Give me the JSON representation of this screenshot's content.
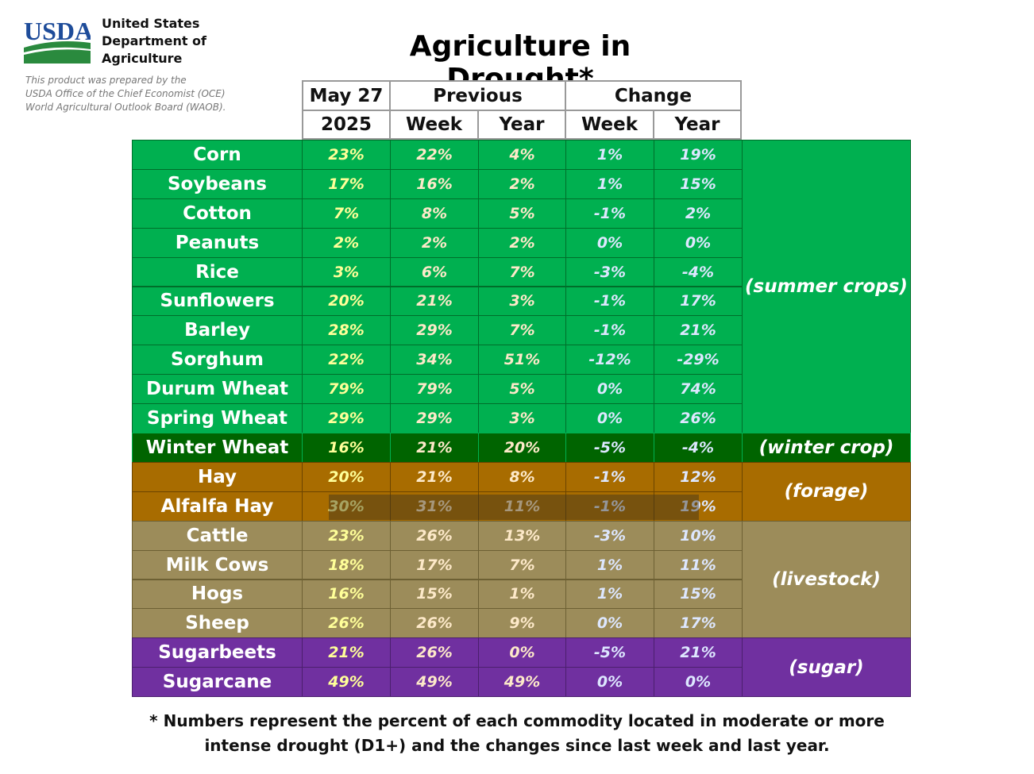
{
  "header": {
    "agency_logo_text": "USDA",
    "agency_lines": [
      "United States",
      "Department of",
      "Agriculture"
    ],
    "prepared_note": [
      "This product was prepared by the",
      "USDA Office of the Chief Economist (OCE)",
      "World Agricultural Outlook Board (WAOB)."
    ],
    "title": "Agriculture in Drought*"
  },
  "table": {
    "header_top": [
      "May 27",
      "Previous",
      "Change"
    ],
    "header_sub": [
      "2025",
      "Week",
      "Year",
      "Week",
      "Year"
    ],
    "rows": [
      {
        "name": "Corn",
        "values": [
          "23%",
          "22%",
          "4%",
          "1%",
          "19%"
        ]
      },
      {
        "name": "Soybeans",
        "values": [
          "17%",
          "16%",
          "2%",
          "1%",
          "15%"
        ]
      },
      {
        "name": "Cotton",
        "values": [
          "7%",
          "8%",
          "5%",
          "-1%",
          "2%"
        ]
      },
      {
        "name": "Peanuts",
        "values": [
          "2%",
          "2%",
          "2%",
          "0%",
          "0%"
        ]
      },
      {
        "name": "Rice",
        "values": [
          "3%",
          "6%",
          "7%",
          "-3%",
          "-4%"
        ]
      },
      {
        "name": "Sunflowers",
        "values": [
          "20%",
          "21%",
          "3%",
          "-1%",
          "17%"
        ]
      },
      {
        "name": "Barley",
        "values": [
          "28%",
          "29%",
          "7%",
          "-1%",
          "21%"
        ]
      },
      {
        "name": "Sorghum",
        "values": [
          "22%",
          "34%",
          "51%",
          "-12%",
          "-29%"
        ]
      },
      {
        "name": "Durum Wheat",
        "values": [
          "79%",
          "79%",
          "5%",
          "0%",
          "74%"
        ]
      },
      {
        "name": "Spring Wheat",
        "values": [
          "29%",
          "29%",
          "3%",
          "0%",
          "26%"
        ]
      },
      {
        "name": "Winter Wheat",
        "values": [
          "16%",
          "21%",
          "20%",
          "-5%",
          "-4%"
        ]
      },
      {
        "name": "Hay",
        "values": [
          "20%",
          "21%",
          "8%",
          "-1%",
          "12%"
        ]
      },
      {
        "name": "Alfalfa Hay",
        "values": [
          "30%",
          "31%",
          "11%",
          "-1%",
          "19%"
        ]
      },
      {
        "name": "Cattle",
        "values": [
          "23%",
          "26%",
          "13%",
          "-3%",
          "10%"
        ]
      },
      {
        "name": "Milk Cows",
        "values": [
          "18%",
          "17%",
          "7%",
          "1%",
          "11%"
        ]
      },
      {
        "name": "Hogs",
        "values": [
          "16%",
          "15%",
          "1%",
          "1%",
          "15%"
        ]
      },
      {
        "name": "Sheep",
        "values": [
          "26%",
          "26%",
          "9%",
          "0%",
          "17%"
        ]
      },
      {
        "name": "Sugarbeets",
        "values": [
          "21%",
          "26%",
          "0%",
          "-5%",
          "21%"
        ]
      },
      {
        "name": "Sugarcane",
        "values": [
          "49%",
          "49%",
          "49%",
          "0%",
          "0%"
        ]
      }
    ],
    "groups": [
      {
        "label": "(summer crops)",
        "rows": 10,
        "bg": "#00b050",
        "row_bg": "#00b050",
        "border": "#006e2a"
      },
      {
        "label": "(winter crop)",
        "rows": 1,
        "bg": "#006400",
        "row_bg": "#006400",
        "border": "#00b050"
      },
      {
        "label": "(forage)",
        "rows": 2,
        "bg": "#a86c00",
        "row_bg": "#a86c00",
        "border": "#6b4400"
      },
      {
        "label": "(livestock)",
        "rows": 4,
        "bg": "#9c8c5a",
        "row_bg": "#9c8c5a",
        "border": "#6d6033"
      },
      {
        "label": "(sugar)",
        "rows": 2,
        "bg": "#7030a0",
        "row_bg": "#7030a0",
        "border": "#4b1f6d"
      }
    ],
    "value_colors": [
      "#ffff99",
      "#fde9c9",
      "#fde9c9",
      "#dde7ff",
      "#dde7ff"
    ]
  },
  "footnote": [
    "* Numbers represent the percent of each commodity located in moderate or more",
    "intense drought (D1+) and the changes since last week and last year."
  ]
}
